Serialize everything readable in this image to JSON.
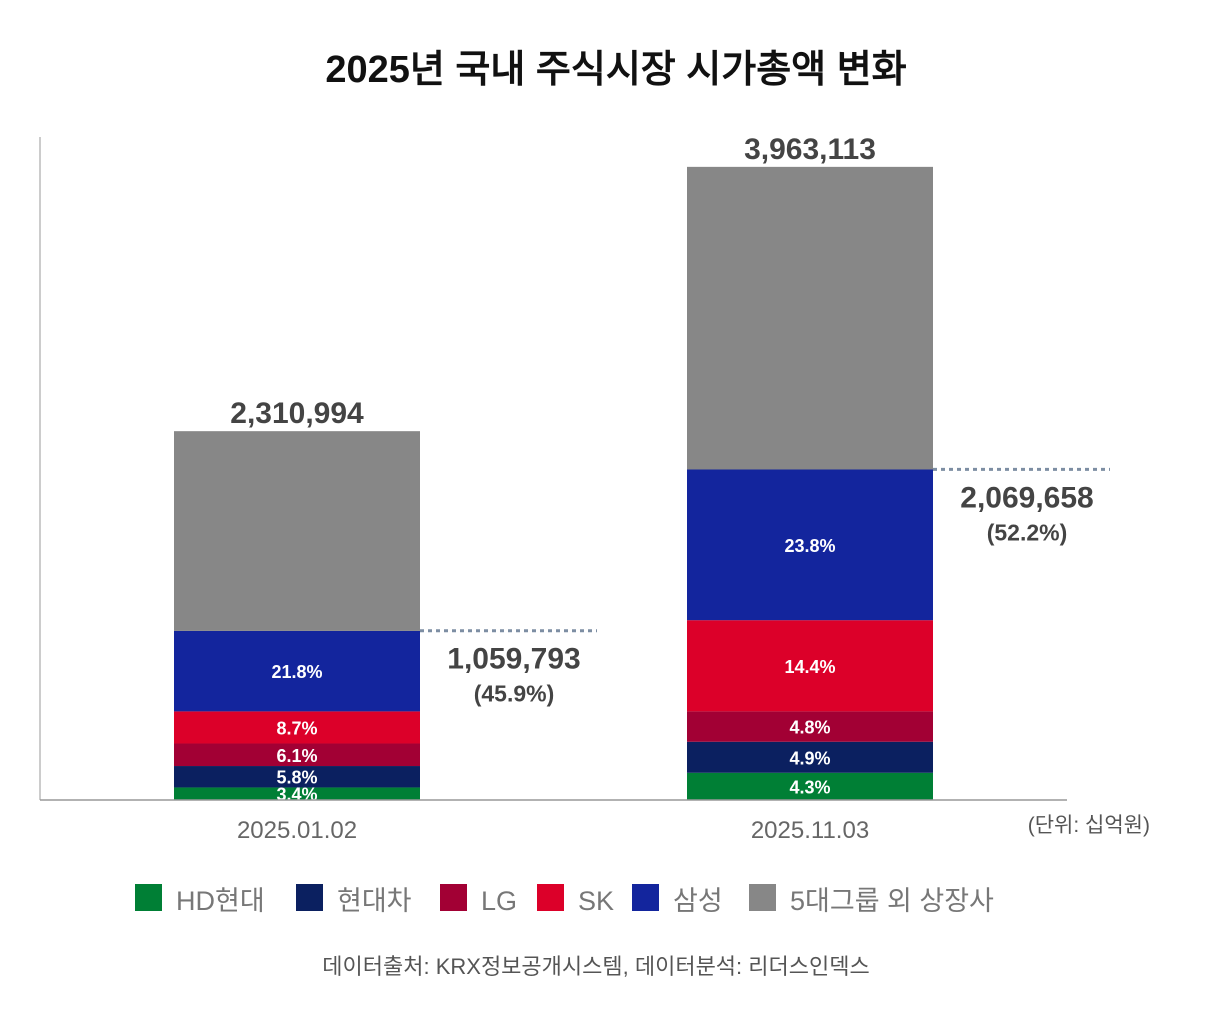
{
  "chart_data": {
    "type": "bar",
    "stacked": true,
    "title": "2025년 국내 주식시장 시가총액 변화",
    "unit_label": "(단위: 십억원)",
    "source": "데이터출처: KRX정보공개시스템, 데이터분석: 리더스인덱스",
    "categories": [
      "2025.01.02",
      "2025.11.03"
    ],
    "totals": [
      2310994,
      3963113
    ],
    "total_labels": [
      "2,310,994",
      "3,963,113"
    ],
    "group_totals": [
      1059793,
      2069658
    ],
    "group_total_labels": [
      "1,059,793",
      "2,069,658"
    ],
    "group_share_labels": [
      "(45.9%)",
      "(52.2%)"
    ],
    "ylim": [
      0,
      4150000
    ],
    "grid": false,
    "legend_position": "bottom",
    "series": [
      {
        "name": "HD현대",
        "color": "#007f35",
        "percent": [
          3.4,
          4.3
        ],
        "labels": [
          "3.4%",
          "4.3%"
        ]
      },
      {
        "name": "현대차",
        "color": "#0b2060",
        "percent": [
          5.8,
          4.9
        ],
        "labels": [
          "5.8%",
          "4.9%"
        ]
      },
      {
        "name": "LG",
        "color": "#a20034",
        "percent": [
          6.1,
          4.8
        ],
        "labels": [
          "6.1%",
          "4.8%"
        ]
      },
      {
        "name": "SK",
        "color": "#dc0029",
        "percent": [
          8.7,
          14.4
        ],
        "labels": [
          "8.7%",
          "14.4%"
        ]
      },
      {
        "name": "삼성",
        "color": "#13259d",
        "percent": [
          21.8,
          23.8
        ],
        "labels": [
          "21.8%",
          "23.8%"
        ]
      },
      {
        "name": "5대그룹 외 상장사",
        "color": "#878787",
        "percent": [
          54.1,
          47.8
        ],
        "labels": [
          "",
          ""
        ]
      }
    ]
  }
}
